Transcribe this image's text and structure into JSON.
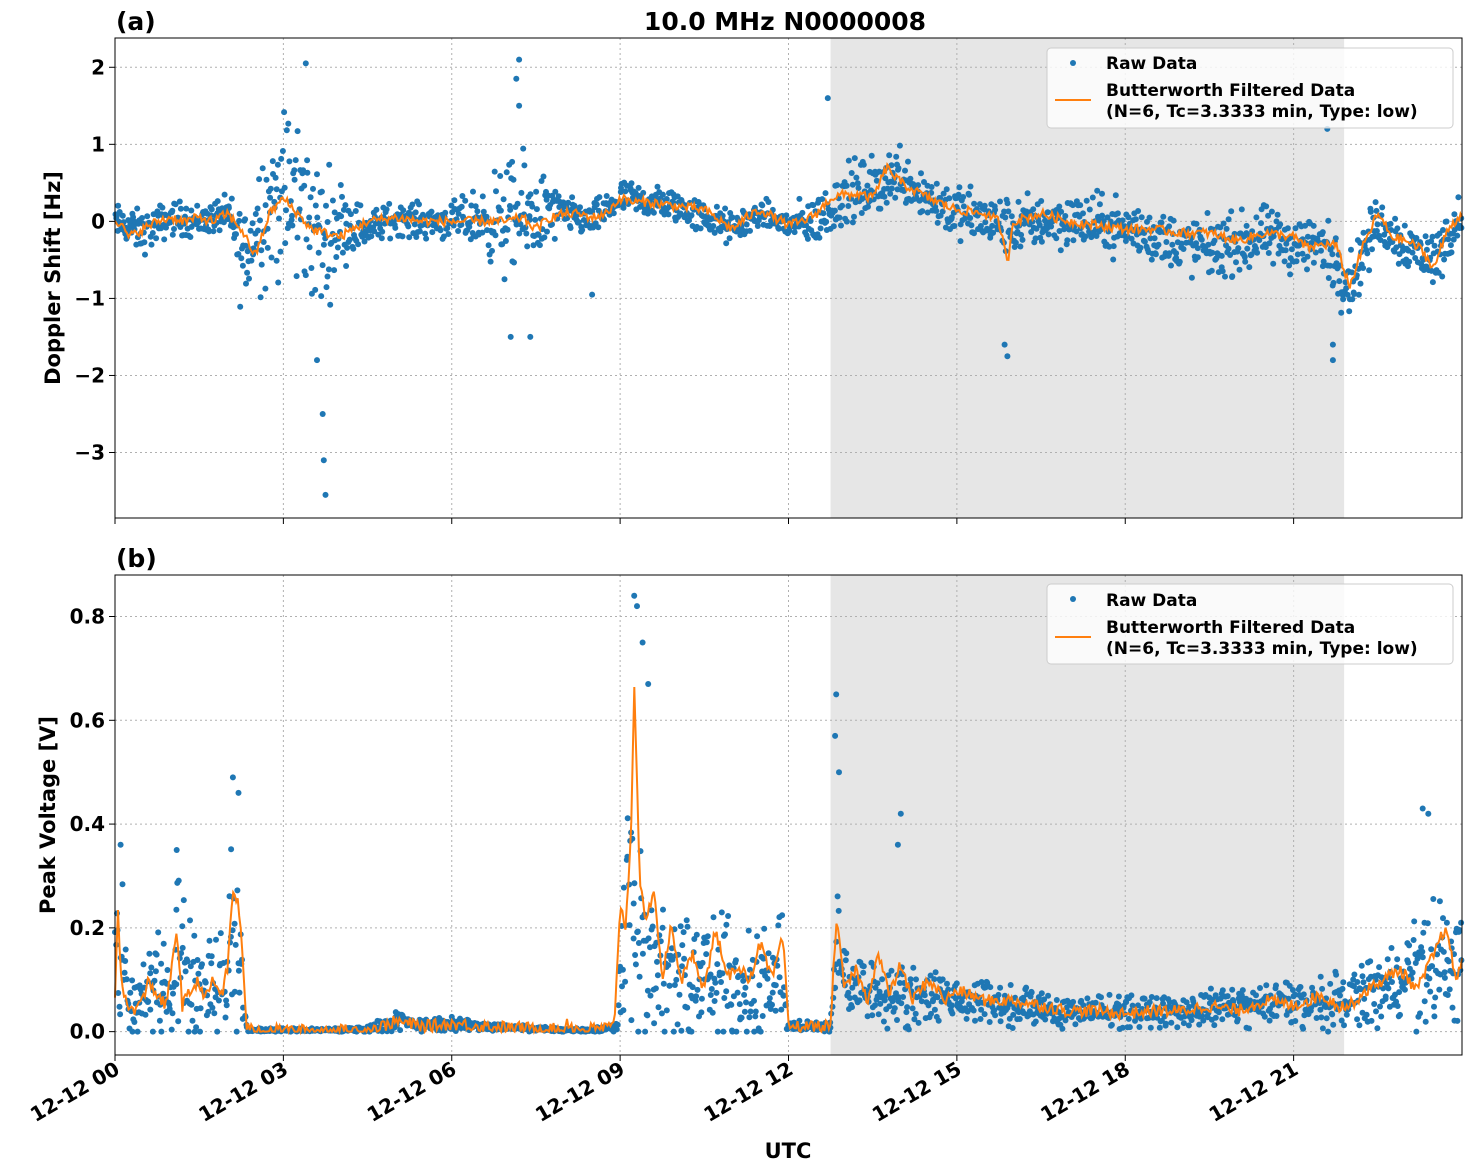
{
  "figure": {
    "title": "10.0 MHz N0000008",
    "xlabel": "UTC",
    "x_tick_labels": [
      "12-12 00",
      "12-12 03",
      "12-12 06",
      "12-12 09",
      "12-12 12",
      "12-12 15",
      "12-12 18",
      "12-12 21"
    ]
  },
  "colors": {
    "raw": "#1f77b4",
    "filtered": "#ff7f0e",
    "shade": "#e6e6e6",
    "grid": "#b0b0b0"
  },
  "legend": {
    "raw": "Raw Data",
    "filtered_line1": "Butterworth Filtered Data",
    "filtered_line2": "(N=6, Tc=3.3333 min, Type: low)"
  },
  "chart_data": [
    {
      "type": "scatter",
      "panel_label": "(a)",
      "ylabel": "Doppler Shift [Hz]",
      "xlim_hours": [
        0,
        24
      ],
      "ylim": [
        -3.85,
        2.38
      ],
      "yticks": [
        -3,
        -2,
        -1,
        0,
        1,
        2
      ],
      "ytick_labels": [
        "−3",
        "−2",
        "−1",
        "0",
        "1",
        "2"
      ],
      "grid": true,
      "legend_position": "upper right",
      "shaded_span_hours": [
        12.75,
        21.9
      ],
      "series": [
        {
          "name": "Raw Data",
          "style": "points",
          "x_hours": [
            0,
            0.5,
            1,
            1.5,
            2,
            2.3,
            2.6,
            3,
            3.3,
            3.7,
            4,
            4.5,
            5,
            5.5,
            6,
            6.5,
            7,
            7.5,
            8,
            8.5,
            9,
            9.5,
            10,
            10.5,
            11,
            11.5,
            12,
            12.5,
            13,
            13.5,
            14,
            14.5,
            15,
            15.5,
            16,
            16.5,
            17,
            17.5,
            18,
            18.5,
            19,
            19.5,
            20,
            20.5,
            21,
            21.5,
            22,
            22.5,
            23,
            23.5,
            24
          ],
          "y": [
            0.0,
            -0.15,
            0.05,
            0.0,
            0.1,
            -0.5,
            0.1,
            0.3,
            0.2,
            -0.3,
            0.0,
            -0.1,
            0.05,
            0.0,
            0.0,
            0.0,
            0.0,
            0.1,
            0.1,
            0.0,
            0.3,
            0.25,
            0.2,
            0.05,
            -0.1,
            0.1,
            -0.05,
            0.0,
            0.3,
            0.4,
            0.6,
            0.3,
            0.1,
            0.0,
            -0.1,
            0.0,
            0.0,
            -0.05,
            -0.1,
            -0.2,
            -0.3,
            -0.35,
            -0.3,
            -0.2,
            -0.3,
            -0.3,
            -0.8,
            0.0,
            -0.3,
            -0.5,
            0.1
          ],
          "y_spread_low": [
            0.2,
            0.25,
            0.2,
            0.2,
            0.2,
            0.7,
            0.8,
            1.0,
            1.0,
            0.8,
            0.5,
            0.2,
            0.2,
            0.2,
            0.2,
            0.3,
            0.7,
            0.6,
            0.2,
            0.2,
            0.2,
            0.2,
            0.2,
            0.2,
            0.2,
            0.15,
            0.2,
            0.3,
            0.3,
            0.3,
            0.3,
            0.3,
            0.3,
            0.3,
            0.3,
            0.3,
            0.3,
            0.3,
            0.3,
            0.3,
            0.35,
            0.35,
            0.35,
            0.35,
            0.35,
            0.35,
            0.4,
            0.3,
            0.3,
            0.35,
            0.25
          ],
          "y_spread_high": [
            0.2,
            0.25,
            0.2,
            0.2,
            0.2,
            0.7,
            0.9,
            1.1,
            1.1,
            0.9,
            0.5,
            0.2,
            0.2,
            0.2,
            0.2,
            0.4,
            0.7,
            0.6,
            0.2,
            0.2,
            0.2,
            0.2,
            0.2,
            0.2,
            0.2,
            0.15,
            0.2,
            0.3,
            0.4,
            0.4,
            0.4,
            0.35,
            0.35,
            0.35,
            0.35,
            0.35,
            0.35,
            0.35,
            0.35,
            0.35,
            0.35,
            0.35,
            0.35,
            0.35,
            0.35,
            0.35,
            0.4,
            0.3,
            0.3,
            0.35,
            0.25
          ],
          "outliers": [
            [
              3.4,
              2.05
            ],
            [
              3.75,
              -3.55
            ],
            [
              3.72,
              -3.1
            ],
            [
              3.7,
              -2.5
            ],
            [
              3.6,
              -1.8
            ],
            [
              7.2,
              2.1
            ],
            [
              7.15,
              1.85
            ],
            [
              7.2,
              1.5
            ],
            [
              7.05,
              -1.5
            ],
            [
              7.4,
              -1.5
            ],
            [
              8.5,
              -0.95
            ],
            [
              12.7,
              1.6
            ],
            [
              15.9,
              -1.75
            ],
            [
              15.85,
              -1.6
            ],
            [
              21.6,
              1.2
            ],
            [
              21.7,
              -1.8
            ],
            [
              21.7,
              -1.6
            ]
          ]
        },
        {
          "name": "Butterworth Filtered Data (N=6, Tc=3.3333 min, Type: low)",
          "style": "line",
          "x_hours": [
            0,
            0.25,
            0.5,
            0.75,
            1,
            1.25,
            1.5,
            1.75,
            2,
            2.25,
            2.5,
            2.75,
            3,
            3.25,
            3.5,
            3.75,
            4,
            4.25,
            4.5,
            5,
            5.5,
            6,
            6.5,
            7,
            7.25,
            7.5,
            7.75,
            8,
            8.25,
            8.5,
            8.75,
            9,
            9.25,
            9.5,
            10,
            10.5,
            11,
            11.25,
            11.5,
            12,
            12.25,
            12.5,
            12.75,
            13,
            13.25,
            13.5,
            13.75,
            14,
            14.25,
            14.5,
            15,
            15.5,
            15.75,
            15.9,
            16,
            16.5,
            17,
            17.5,
            18,
            18.5,
            19,
            19.5,
            20,
            20.5,
            21,
            21.25,
            21.5,
            21.75,
            22,
            22.25,
            22.5,
            22.75,
            23,
            23.25,
            23.5,
            23.75,
            24
          ],
          "y": [
            0.05,
            -0.2,
            -0.1,
            0.0,
            0.05,
            0.0,
            0.05,
            0.0,
            0.1,
            -0.1,
            -0.45,
            0.1,
            0.3,
            0.1,
            -0.1,
            -0.15,
            -0.2,
            -0.1,
            0.0,
            0.05,
            0.0,
            0.0,
            0.0,
            0.0,
            0.05,
            -0.1,
            0.05,
            0.1,
            0.1,
            0.05,
            0.1,
            0.3,
            0.25,
            0.25,
            0.2,
            0.15,
            -0.1,
            0.05,
            0.15,
            -0.05,
            0.0,
            0.1,
            0.3,
            0.35,
            0.35,
            0.3,
            0.7,
            0.5,
            0.4,
            0.3,
            0.15,
            0.1,
            0.0,
            -0.55,
            0.0,
            0.1,
            0.0,
            -0.05,
            -0.1,
            -0.1,
            -0.15,
            -0.15,
            -0.25,
            -0.15,
            -0.2,
            -0.35,
            -0.3,
            -0.3,
            -0.85,
            -0.3,
            0.1,
            -0.2,
            -0.25,
            -0.35,
            -0.6,
            -0.1,
            0.1
          ]
        }
      ]
    },
    {
      "type": "scatter",
      "panel_label": "(b)",
      "ylabel": "Peak Voltage [V]",
      "xlim_hours": [
        0,
        24
      ],
      "ylim": [
        -0.045,
        0.88
      ],
      "yticks": [
        0.0,
        0.2,
        0.4,
        0.6,
        0.8
      ],
      "ytick_labels": [
        "0.0",
        "0.2",
        "0.4",
        "0.6",
        "0.8"
      ],
      "grid": true,
      "legend_position": "upper right",
      "shaded_span_hours": [
        12.75,
        21.9
      ],
      "series": [
        {
          "name": "Raw Data",
          "style": "points",
          "x_hours": [
            0,
            0.1,
            0.25,
            0.5,
            0.75,
            1,
            1.1,
            1.5,
            1.75,
            2,
            2.1,
            2.2,
            2.35,
            2.5,
            3,
            4,
            4.5,
            5,
            5.5,
            6,
            7,
            8,
            8.5,
            8.95,
            9.05,
            9.2,
            9.3,
            9.5,
            9.75,
            10,
            10.5,
            11,
            11.5,
            11.9,
            12,
            12.4,
            12.75,
            12.85,
            13,
            13.5,
            14,
            14.5,
            15,
            15.5,
            16,
            17,
            18,
            19,
            20,
            20.5,
            21,
            21.5,
            22,
            22.5,
            23,
            23.5,
            24
          ],
          "y_center": [
            0.1,
            0.2,
            0.04,
            0.06,
            0.1,
            0.08,
            0.15,
            0.08,
            0.1,
            0.12,
            0.2,
            0.15,
            0.005,
            0.003,
            0.003,
            0.003,
            0.005,
            0.02,
            0.012,
            0.015,
            0.008,
            0.004,
            0.003,
            0.01,
            0.2,
            0.3,
            0.2,
            0.12,
            0.1,
            0.1,
            0.1,
            0.1,
            0.1,
            0.1,
            0.01,
            0.01,
            0.01,
            0.15,
            0.1,
            0.08,
            0.07,
            0.07,
            0.06,
            0.06,
            0.05,
            0.04,
            0.04,
            0.04,
            0.05,
            0.05,
            0.06,
            0.05,
            0.06,
            0.08,
            0.1,
            0.12,
            0.13
          ],
          "y_spread": [
            0.08,
            0.15,
            0.04,
            0.06,
            0.08,
            0.07,
            0.12,
            0.07,
            0.08,
            0.1,
            0.15,
            0.12,
            0.005,
            0.003,
            0.003,
            0.003,
            0.005,
            0.015,
            0.01,
            0.01,
            0.005,
            0.004,
            0.003,
            0.008,
            0.15,
            0.25,
            0.18,
            0.1,
            0.1,
            0.1,
            0.1,
            0.1,
            0.1,
            0.1,
            0.008,
            0.008,
            0.008,
            0.1,
            0.06,
            0.05,
            0.05,
            0.04,
            0.04,
            0.035,
            0.03,
            0.025,
            0.025,
            0.025,
            0.03,
            0.03,
            0.035,
            0.04,
            0.045,
            0.05,
            0.07,
            0.1,
            0.1
          ],
          "outliers": [
            [
              0.1,
              0.36
            ],
            [
              1.1,
              0.35
            ],
            [
              2.1,
              0.49
            ],
            [
              2.2,
              0.46
            ],
            [
              9.25,
              0.84
            ],
            [
              9.3,
              0.82
            ],
            [
              9.4,
              0.75
            ],
            [
              9.5,
              0.67
            ],
            [
              12.85,
              0.65
            ],
            [
              12.83,
              0.57
            ],
            [
              12.9,
              0.5
            ],
            [
              14.0,
              0.42
            ],
            [
              13.95,
              0.36
            ],
            [
              23.3,
              0.43
            ],
            [
              23.4,
              0.42
            ]
          ]
        },
        {
          "name": "Butterworth Filtered Data (N=6, Tc=3.3333 min, Type: low)",
          "style": "line",
          "x_hours": [
            0,
            0.05,
            0.1,
            0.2,
            0.3,
            0.5,
            0.6,
            0.75,
            0.9,
            1.0,
            1.1,
            1.2,
            1.3,
            1.5,
            1.6,
            1.75,
            1.9,
            2.0,
            2.1,
            2.2,
            2.3,
            2.35,
            2.5,
            3,
            4,
            4.5,
            4.75,
            5,
            5.5,
            6,
            7,
            8,
            8.05,
            8.2,
            8.5,
            8.9,
            9.0,
            9.1,
            9.2,
            9.25,
            9.35,
            9.45,
            9.6,
            9.75,
            9.9,
            10.1,
            10.3,
            10.5,
            10.7,
            10.9,
            11.1,
            11.3,
            11.5,
            11.7,
            11.9,
            12.0,
            12.3,
            12.6,
            12.75,
            12.85,
            13.0,
            13.2,
            13.4,
            13.6,
            13.8,
            14.0,
            14.2,
            14.5,
            14.8,
            15.0,
            15.5,
            16,
            16.5,
            17,
            17.5,
            18,
            18.5,
            19,
            19.5,
            20,
            20.5,
            21,
            21.5,
            21.8,
            22,
            22.3,
            22.6,
            22.9,
            23.2,
            23.5,
            23.7,
            23.9,
            24
          ],
          "y": [
            0.06,
            0.24,
            0.12,
            0.05,
            0.04,
            0.06,
            0.1,
            0.07,
            0.05,
            0.11,
            0.2,
            0.05,
            0.07,
            0.1,
            0.06,
            0.1,
            0.07,
            0.12,
            0.27,
            0.25,
            0.1,
            0.005,
            0.003,
            0.002,
            0.002,
            0.003,
            0.01,
            0.02,
            0.01,
            0.015,
            0.008,
            0.004,
            0.02,
            0.005,
            0.005,
            0.01,
            0.25,
            0.2,
            0.4,
            0.68,
            0.3,
            0.2,
            0.28,
            0.1,
            0.2,
            0.1,
            0.15,
            0.08,
            0.2,
            0.1,
            0.13,
            0.1,
            0.17,
            0.1,
            0.18,
            0.01,
            0.01,
            0.01,
            0.01,
            0.22,
            0.08,
            0.12,
            0.06,
            0.15,
            0.07,
            0.13,
            0.06,
            0.1,
            0.06,
            0.08,
            0.06,
            0.06,
            0.05,
            0.04,
            0.04,
            0.035,
            0.04,
            0.04,
            0.05,
            0.04,
            0.06,
            0.05,
            0.07,
            0.05,
            0.05,
            0.08,
            0.1,
            0.12,
            0.08,
            0.15,
            0.2,
            0.1,
            0.14
          ]
        }
      ]
    }
  ]
}
